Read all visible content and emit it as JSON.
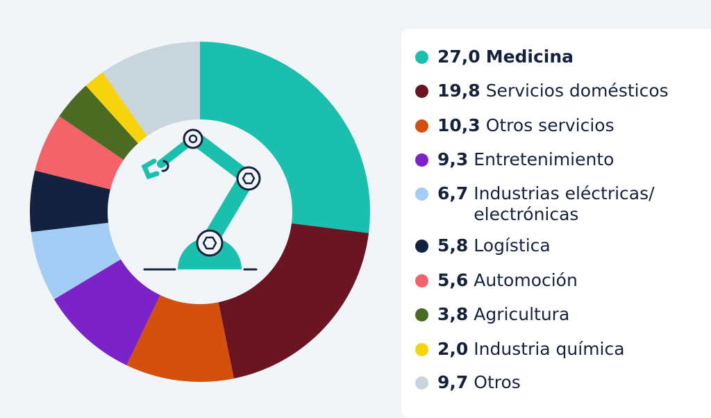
{
  "chart_data": {
    "type": "pie",
    "variant": "donut",
    "start": "12 o'clock, clockwise",
    "legend_position": "right",
    "center_icon": "robot-arm-icon",
    "categories": [
      "Medicina",
      "Servicios domésticos",
      "Otros servicios",
      "Entretenimiento",
      "Industrias eléctricas/ electrónicas",
      "Logística",
      "Automoción",
      "Agricultura",
      "Industria química",
      "Otros"
    ],
    "values": [
      27.0,
      19.8,
      10.3,
      9.3,
      6.7,
      5.8,
      5.6,
      3.8,
      2.0,
      9.7
    ],
    "value_labels": [
      "27,0",
      "19,8",
      "10,3",
      "9,3",
      "6,7",
      "5,8",
      "5,6",
      "3,8",
      "2,0",
      "9,7"
    ],
    "colors": [
      "#1bbfae",
      "#6a1521",
      "#d4500f",
      "#7b22c9",
      "#a4cdf5",
      "#13233f",
      "#f2636a",
      "#4b6a22",
      "#f7d30e",
      "#c9d5dd"
    ]
  }
}
